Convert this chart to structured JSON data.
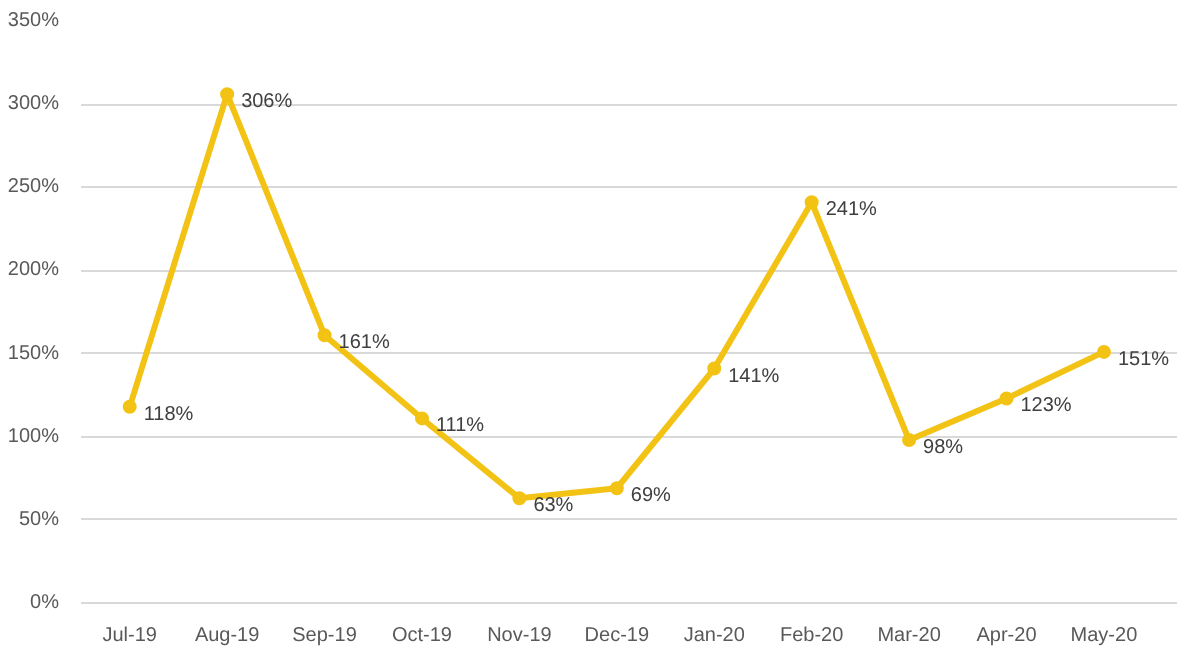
{
  "chart_data": {
    "type": "line",
    "categories": [
      "Jul-19",
      "Aug-19",
      "Sep-19",
      "Oct-19",
      "Nov-19",
      "Dec-19",
      "Jan-20",
      "Feb-20",
      "Mar-20",
      "Apr-20",
      "May-20"
    ],
    "values": [
      118,
      306,
      161,
      111,
      63,
      69,
      141,
      241,
      98,
      123,
      151
    ],
    "value_labels": [
      "118%",
      "306%",
      "161%",
      "111%",
      "63%",
      "69%",
      "141%",
      "241%",
      "98%",
      "123%",
      "151%"
    ],
    "color": "#f2c314",
    "ylim": [
      0,
      350
    ],
    "yticks": [
      {
        "value": 0,
        "label": "0%"
      },
      {
        "value": 50,
        "label": "50%"
      },
      {
        "value": 100,
        "label": "100%"
      },
      {
        "value": 150,
        "label": "150%"
      },
      {
        "value": 200,
        "label": "200%"
      },
      {
        "value": 250,
        "label": "250%"
      },
      {
        "value": 300,
        "label": "300%"
      },
      {
        "value": 350,
        "label": "350%"
      }
    ],
    "grid": "y",
    "marker": "circle",
    "line_style": "solid"
  }
}
